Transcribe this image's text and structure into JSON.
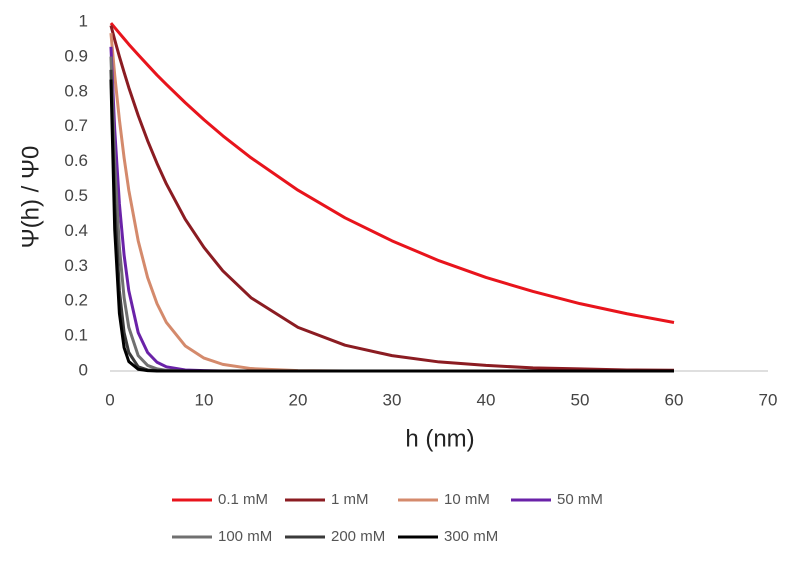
{
  "chart_data": {
    "type": "line",
    "x_label": "h (nm)",
    "y_label": "Ψ(h) / Ψ0",
    "x": [
      0.1,
      0.5,
      1,
      1.5,
      2,
      3,
      4,
      5,
      6,
      8,
      10,
      12,
      15,
      20,
      25,
      30,
      35,
      40,
      45,
      50,
      55,
      60
    ],
    "xlim": [
      0,
      70
    ],
    "xticks": [
      0,
      10,
      20,
      30,
      40,
      50,
      60,
      70
    ],
    "ylim": [
      0,
      1
    ],
    "yticks": [
      0,
      0.1,
      0.2,
      0.3,
      0.4,
      0.5,
      0.6,
      0.7,
      0.8,
      0.9,
      1
    ],
    "grid": false,
    "legend": "bottom",
    "series": [
      {
        "name": "0.1 mM",
        "color": "#e8141c",
        "values": [
          0.997,
          0.984,
          0.968,
          0.952,
          0.936,
          0.906,
          0.877,
          0.848,
          0.821,
          0.769,
          0.72,
          0.674,
          0.611,
          0.518,
          0.439,
          0.373,
          0.316,
          0.268,
          0.228,
          0.193,
          0.164,
          0.139
        ]
      },
      {
        "name": "1 mM",
        "color": "#8b1c22",
        "values": [
          0.99,
          0.949,
          0.901,
          0.856,
          0.812,
          0.732,
          0.66,
          0.595,
          0.536,
          0.435,
          0.354,
          0.287,
          0.21,
          0.125,
          0.074,
          0.044,
          0.026,
          0.016,
          0.009,
          0.006,
          0.003,
          0.002
        ]
      },
      {
        "name": "10 mM",
        "color": "#d48a6c",
        "values": [
          0.968,
          0.848,
          0.72,
          0.611,
          0.518,
          0.373,
          0.268,
          0.193,
          0.139,
          0.072,
          0.037,
          0.019,
          0.007,
          0.001,
          0,
          0,
          0,
          0,
          0,
          0,
          0,
          0
        ]
      },
      {
        "name": "50 mM",
        "color": "#6a22a8",
        "values": [
          0.929,
          0.692,
          0.479,
          0.332,
          0.23,
          0.11,
          0.053,
          0.025,
          0.012,
          0.003,
          0.001,
          0,
          0,
          0,
          0,
          0,
          0,
          0,
          0,
          0,
          0,
          0
        ]
      },
      {
        "name": "100 mM",
        "color": "#707070",
        "values": [
          0.901,
          0.595,
          0.354,
          0.21,
          0.125,
          0.044,
          0.016,
          0.006,
          0.002,
          0,
          0,
          0,
          0,
          0,
          0,
          0,
          0,
          0,
          0,
          0,
          0,
          0
        ]
      },
      {
        "name": "200 mM",
        "color": "#3a3a3a",
        "values": [
          0.863,
          0.479,
          0.23,
          0.11,
          0.053,
          0.012,
          0.003,
          0.001,
          0,
          0,
          0,
          0,
          0,
          0,
          0,
          0,
          0,
          0,
          0,
          0,
          0,
          0
        ]
      },
      {
        "name": "300 mM",
        "color": "#000000",
        "values": [
          0.835,
          0.406,
          0.165,
          0.067,
          0.027,
          0.005,
          0.001,
          0,
          0,
          0,
          0,
          0,
          0,
          0,
          0,
          0,
          0,
          0,
          0,
          0,
          0,
          0
        ]
      }
    ]
  }
}
